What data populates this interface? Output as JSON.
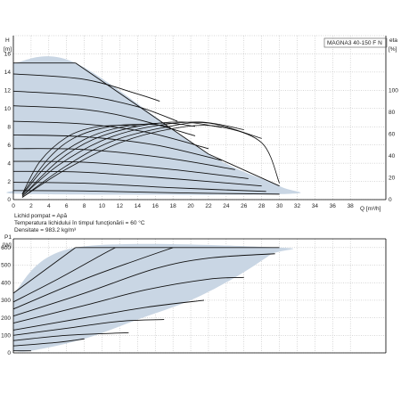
{
  "colors": {
    "fill": "#c9d6e4",
    "curve": "#111111",
    "grid": "#9a9a9a",
    "axis": "#000000"
  },
  "chart_data": [
    {
      "type": "line",
      "title": "MAGNA3 40-150 F N",
      "xlabel": "Q [m³/h]",
      "ylabel": "H [m]",
      "ylabel_line1": "H",
      "ylabel_line2": "[m]",
      "y2label_line1": "eta",
      "y2label_line2": "[%]",
      "xlim": [
        0,
        42
      ],
      "ylim": [
        0,
        18
      ],
      "y2lim": [
        0,
        150
      ],
      "x_ticks": [
        0,
        2,
        4,
        6,
        8,
        10,
        12,
        14,
        16,
        18,
        20,
        22,
        24,
        26,
        28,
        30,
        32,
        34,
        36,
        38
      ],
      "y_ticks": [
        0,
        2,
        4,
        6,
        8,
        10,
        12,
        14,
        16
      ],
      "y2_ticks": [
        0,
        20,
        40,
        60,
        80,
        100
      ],
      "grid": true,
      "area_envelope": [
        [
          0,
          15
        ],
        [
          7,
          15
        ],
        [
          22,
          5
        ],
        [
          30,
          1.5
        ],
        [
          30,
          0.6
        ],
        [
          2,
          0.6
        ],
        [
          0,
          1
        ]
      ],
      "series": [
        {
          "role": "head",
          "values": [
            [
              0,
              15
            ],
            [
              7,
              15
            ]
          ]
        },
        {
          "role": "head",
          "values": [
            [
              0,
              13.8
            ],
            [
              8,
              13.2
            ],
            [
              14,
              11.6
            ],
            [
              16.5,
              10.8
            ]
          ]
        },
        {
          "role": "head",
          "values": [
            [
              0,
              11.9
            ],
            [
              8,
              11.4
            ],
            [
              14,
              10.2
            ],
            [
              18.5,
              8.6
            ]
          ]
        },
        {
          "role": "head",
          "values": [
            [
              0,
              10.3
            ],
            [
              8,
              9.9
            ],
            [
              14,
              8.8
            ],
            [
              20.5,
              7.0
            ]
          ]
        },
        {
          "role": "head",
          "values": [
            [
              0,
              8.6
            ],
            [
              8,
              8.3
            ],
            [
              15,
              7.4
            ],
            [
              22,
              5.6
            ]
          ]
        },
        {
          "role": "head",
          "values": [
            [
              0,
              7.1
            ],
            [
              8,
              6.9
            ],
            [
              16,
              6.0
            ],
            [
              23.5,
              4.3
            ]
          ]
        },
        {
          "role": "head",
          "values": [
            [
              0,
              5.6
            ],
            [
              8,
              5.5
            ],
            [
              17,
              4.6
            ],
            [
              25,
              3.3
            ]
          ]
        },
        {
          "role": "head",
          "values": [
            [
              0,
              4.2
            ],
            [
              8,
              4.1
            ],
            [
              18,
              3.3
            ],
            [
              26.5,
              2.3
            ]
          ]
        },
        {
          "role": "head",
          "values": [
            [
              0,
              3.1
            ],
            [
              8,
              3.0
            ],
            [
              18,
              2.3
            ],
            [
              28,
              1.5
            ]
          ]
        },
        {
          "role": "head",
          "values": [
            [
              0,
              1.9
            ],
            [
              8,
              1.8
            ],
            [
              18,
              1.3
            ],
            [
              28.5,
              0.9
            ]
          ]
        },
        {
          "role": "head",
          "values": [
            [
              0,
              1.0
            ],
            [
              8,
              0.95
            ],
            [
              18,
              0.75
            ],
            [
              30,
              0.6
            ]
          ]
        },
        {
          "role": "efficiency",
          "values": [
            [
              1,
              5
            ],
            [
              3,
              35
            ],
            [
              6,
              57
            ],
            [
              9,
              66
            ],
            [
              12,
              68
            ],
            [
              14,
              67
            ]
          ]
        },
        {
          "role": "efficiency",
          "values": [
            [
              1,
              5
            ],
            [
              4,
              38
            ],
            [
              7,
              57
            ],
            [
              11,
              67
            ],
            [
              15,
              69
            ],
            [
              17.5,
              67
            ]
          ]
        },
        {
          "role": "efficiency",
          "values": [
            [
              1,
              4
            ],
            [
              4,
              33
            ],
            [
              8,
              55
            ],
            [
              12,
              66
            ],
            [
              17,
              70
            ],
            [
              20.5,
              67
            ]
          ]
        },
        {
          "role": "efficiency",
          "values": [
            [
              1,
              3
            ],
            [
              5,
              35
            ],
            [
              9,
              55
            ],
            [
              14,
              67
            ],
            [
              19,
              71
            ],
            [
              23.5,
              66
            ]
          ]
        },
        {
          "role": "efficiency",
          "values": [
            [
              1,
              3
            ],
            [
              5,
              31
            ],
            [
              10,
              54
            ],
            [
              15,
              66
            ],
            [
              21,
              71
            ],
            [
              26,
              64
            ]
          ]
        },
        {
          "role": "efficiency",
          "values": [
            [
              1,
              2
            ],
            [
              6,
              31
            ],
            [
              11,
              53
            ],
            [
              17,
              66
            ],
            [
              22,
              70
            ],
            [
              28,
              56
            ]
          ]
        },
        {
          "role": "efficiency",
          "values": [
            [
              1,
              2
            ],
            [
              6,
              28
            ],
            [
              12,
              52
            ],
            [
              18,
              65
            ],
            [
              23,
              67
            ],
            [
              28,
              52
            ],
            [
              30,
              15
            ]
          ]
        }
      ]
    },
    {
      "type": "line",
      "title": "",
      "xlabel": "",
      "ylabel": "P1 [W]",
      "ylabel_line1": "P1",
      "ylabel_line2": "[W]",
      "xlim": [
        0,
        42
      ],
      "ylim": [
        0,
        650
      ],
      "y_ticks": [
        0,
        100,
        200,
        300,
        400,
        500,
        600
      ],
      "grid": true,
      "area_envelope": [
        [
          0,
          340
        ],
        [
          7,
          600
        ],
        [
          30,
          600
        ],
        [
          29,
          560
        ],
        [
          25,
          430
        ],
        [
          20,
          300
        ],
        [
          14,
          190
        ],
        [
          8,
          80
        ],
        [
          2,
          12
        ],
        [
          0,
          12
        ]
      ],
      "series": [
        {
          "role": "power",
          "values": [
            [
              7,
              600
            ],
            [
              30,
              600
            ]
          ]
        },
        {
          "role": "power",
          "values": [
            [
              0,
              340
            ],
            [
              7,
              600
            ]
          ]
        },
        {
          "role": "power",
          "values": [
            [
              0,
              290
            ],
            [
              5,
              420
            ],
            [
              10,
              560
            ],
            [
              11.5,
              600
            ]
          ]
        },
        {
          "role": "power",
          "values": [
            [
              0,
              250
            ],
            [
              8,
              420
            ],
            [
              14,
              530
            ],
            [
              18,
              600
            ]
          ]
        },
        {
          "role": "power",
          "values": [
            [
              0,
              210
            ],
            [
              8,
              340
            ],
            [
              16,
              480
            ],
            [
              22,
              540
            ],
            [
              29.5,
              565
            ]
          ]
        },
        {
          "role": "power",
          "values": [
            [
              0,
              170
            ],
            [
              8,
              270
            ],
            [
              15,
              360
            ],
            [
              22,
              420
            ],
            [
              26,
              430
            ]
          ]
        },
        {
          "role": "power",
          "values": [
            [
              0,
              130
            ],
            [
              8,
              200
            ],
            [
              15,
              260
            ],
            [
              21.5,
              300
            ]
          ]
        },
        {
          "role": "power",
          "values": [
            [
              0,
              100
            ],
            [
              6,
              140
            ],
            [
              12,
              180
            ],
            [
              17,
              190
            ]
          ]
        },
        {
          "role": "power",
          "values": [
            [
              0,
              70
            ],
            [
              6,
              100
            ],
            [
              13,
              115
            ]
          ]
        },
        {
          "role": "power",
          "values": [
            [
              0,
              40
            ],
            [
              5,
              60
            ],
            [
              8,
              80
            ]
          ]
        },
        {
          "role": "power",
          "values": [
            [
              0,
              12
            ],
            [
              2,
              12
            ]
          ]
        }
      ]
    }
  ],
  "fluid_info": [
    "Lichid pompat = Apă",
    "Temperatura lichidului în timpul funcţionării = 60 °C",
    "Densitate = 983.2 kg/m³"
  ]
}
